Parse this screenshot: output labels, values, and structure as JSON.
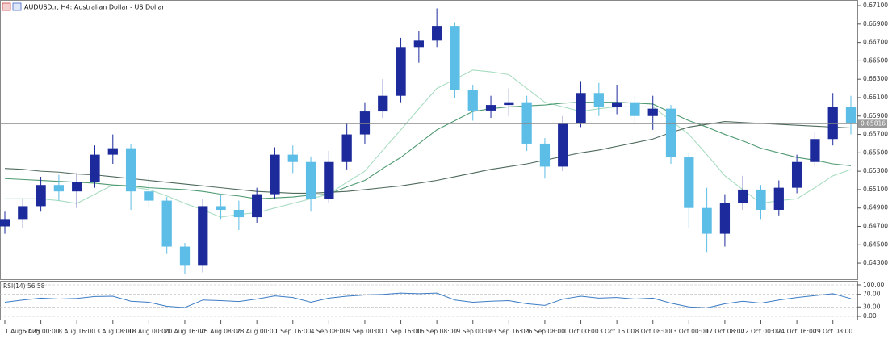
{
  "chart_data": [
    {
      "type": "candlestick",
      "title": "AUDUSD.r, H4:  Australian Dollar - US Dollar",
      "categories": [
        "1 Aug 2025",
        null,
        "6 Aug 00:00",
        null,
        "8 Aug 16:00",
        null,
        "13 Aug 08:00",
        null,
        "18 Aug 00:00",
        null,
        "20 Aug 16:00",
        null,
        "25 Aug 08:00",
        null,
        "28 Aug 00:00",
        null,
        "1 Sep 16:00",
        null,
        "4 Sep 08:00",
        null,
        "9 Sep 00:00",
        null,
        "11 Sep 16:00",
        null,
        "16 Sep 08:00",
        null,
        "19 Sep 00:00",
        null,
        "23 Sep 16:00",
        null,
        "26 Sep 08:00",
        null,
        "1 Oct 00:00",
        null,
        "3 Oct 16:00",
        null,
        "8 Oct 08:00",
        null,
        "13 Oct 00:00",
        null,
        "17 Oct 08:00",
        null,
        "22 Oct 00:00",
        null,
        "24 Oct 16:00",
        null,
        "29 Oct 08:00",
        null
      ],
      "open": [
        0.647,
        0.6478,
        0.6492,
        0.6515,
        0.6508,
        0.6518,
        0.6548,
        0.6555,
        0.6508,
        0.6498,
        0.6448,
        0.6428,
        0.6492,
        0.6488,
        0.648,
        0.6505,
        0.6548,
        0.654,
        0.65,
        0.654,
        0.657,
        0.6595,
        0.6612,
        0.6665,
        0.6672,
        0.6688,
        0.6618,
        0.6596,
        0.6602,
        0.6605,
        0.656,
        0.6535,
        0.6582,
        0.6615,
        0.66,
        0.6605,
        0.659,
        0.6598,
        0.6545,
        0.649,
        0.6462,
        0.6495,
        0.651,
        0.6488,
        0.6512,
        0.654,
        0.6565,
        0.66
      ],
      "high": [
        0.6486,
        0.65,
        0.6524,
        0.6526,
        0.6528,
        0.6558,
        0.657,
        0.656,
        0.6525,
        0.6502,
        0.6452,
        0.65,
        0.6505,
        0.6498,
        0.6512,
        0.6556,
        0.6558,
        0.6546,
        0.6552,
        0.6582,
        0.6605,
        0.663,
        0.6675,
        0.6682,
        0.6707,
        0.6692,
        0.6624,
        0.6612,
        0.662,
        0.6612,
        0.6566,
        0.659,
        0.6628,
        0.6626,
        0.6624,
        0.6612,
        0.6612,
        0.6602,
        0.655,
        0.6512,
        0.6505,
        0.6525,
        0.6515,
        0.652,
        0.6548,
        0.6572,
        0.6615,
        0.6612
      ],
      "low": [
        0.6462,
        0.6468,
        0.6486,
        0.6498,
        0.649,
        0.6512,
        0.6538,
        0.6488,
        0.649,
        0.644,
        0.6418,
        0.642,
        0.6478,
        0.6466,
        0.6474,
        0.65,
        0.6528,
        0.6486,
        0.6496,
        0.6532,
        0.656,
        0.6588,
        0.6605,
        0.6648,
        0.6665,
        0.661,
        0.6585,
        0.6588,
        0.659,
        0.6552,
        0.6522,
        0.653,
        0.6578,
        0.659,
        0.6592,
        0.658,
        0.6575,
        0.6538,
        0.6468,
        0.6442,
        0.6448,
        0.6488,
        0.6478,
        0.6482,
        0.6506,
        0.6535,
        0.6558,
        0.657
      ],
      "close": [
        0.6478,
        0.6492,
        0.6515,
        0.6508,
        0.6518,
        0.6548,
        0.6555,
        0.6508,
        0.6498,
        0.6448,
        0.6428,
        0.6492,
        0.6488,
        0.648,
        0.6505,
        0.6548,
        0.654,
        0.65,
        0.654,
        0.657,
        0.6595,
        0.6612,
        0.6665,
        0.6672,
        0.6688,
        0.6618,
        0.6596,
        0.6602,
        0.6605,
        0.656,
        0.6535,
        0.6582,
        0.6615,
        0.66,
        0.6605,
        0.659,
        0.6598,
        0.6545,
        0.649,
        0.6462,
        0.6495,
        0.651,
        0.6488,
        0.6512,
        0.654,
        0.6565,
        0.66,
        0.6582
      ],
      "up_color": "#1c2a9c",
      "down_color": "#5cbde6",
      "lines": [
        {
          "color": "#a8dcc0",
          "values": [
            0.65,
            0.65,
            0.65,
            0.6498,
            0.6495,
            0.6505,
            0.6515,
            0.6513,
            0.651,
            0.6503,
            0.6495,
            0.6488,
            0.648,
            0.6483,
            0.6485,
            0.649,
            0.6495,
            0.65,
            0.6505,
            0.6518,
            0.653,
            0.6553,
            0.6575,
            0.6598,
            0.662,
            0.663,
            0.664,
            0.6638,
            0.6635,
            0.662,
            0.6605,
            0.66,
            0.6595,
            0.6598,
            0.66,
            0.66,
            0.66,
            0.6585,
            0.657,
            0.6548,
            0.6525,
            0.651,
            0.6495,
            0.6498,
            0.65,
            0.6512,
            0.6525,
            0.6532
          ]
        },
        {
          "color": "#4e9a72",
          "values": [
            0.6522,
            0.6521,
            0.652,
            0.6519,
            0.6518,
            0.6517,
            0.6515,
            0.6514,
            0.6512,
            0.6511,
            0.651,
            0.6508,
            0.6505,
            0.6503,
            0.65,
            0.6501,
            0.6502,
            0.6504,
            0.6505,
            0.6513,
            0.652,
            0.6533,
            0.6545,
            0.656,
            0.6575,
            0.6585,
            0.6595,
            0.6598,
            0.66,
            0.6601,
            0.6602,
            0.6604,
            0.6605,
            0.6605,
            0.6605,
            0.6604,
            0.6603,
            0.6594,
            0.6585,
            0.6578,
            0.657,
            0.6563,
            0.6555,
            0.655,
            0.6545,
            0.6542,
            0.6538,
            0.6536
          ]
        },
        {
          "color": "#4f6b5c",
          "values": [
            0.6533,
            0.6532,
            0.653,
            0.6529,
            0.6527,
            0.6526,
            0.6524,
            0.6522,
            0.652,
            0.6518,
            0.6516,
            0.6514,
            0.6512,
            0.651,
            0.6508,
            0.6507,
            0.6506,
            0.6506,
            0.6507,
            0.6508,
            0.651,
            0.6512,
            0.6514,
            0.6517,
            0.652,
            0.6524,
            0.6528,
            0.6532,
            0.6535,
            0.6538,
            0.6542,
            0.6546,
            0.655,
            0.6553,
            0.6557,
            0.6561,
            0.6565,
            0.6572,
            0.6578,
            0.6581,
            0.6584,
            0.6583,
            0.6582,
            0.6581,
            0.658,
            0.6579,
            0.6578,
            0.6577
          ]
        }
      ],
      "price_line": {
        "value": 0.65816,
        "label": "0.65816"
      },
      "ylim": [
        0.64125,
        0.67153
      ],
      "yticks": [
        {
          "value": 0.643,
          "label": "0.64300"
        },
        {
          "value": 0.645,
          "label": "0.64500"
        },
        {
          "value": 0.647,
          "label": "0.64700"
        },
        {
          "value": 0.649,
          "label": "0.64900"
        },
        {
          "value": 0.651,
          "label": "0.65100"
        },
        {
          "value": 0.653,
          "label": "0.65300"
        },
        {
          "value": 0.655,
          "label": "0.65500"
        },
        {
          "value": 0.657,
          "label": "0.65700"
        },
        {
          "value": 0.659,
          "label": "0.65900"
        },
        {
          "value": 0.661,
          "label": "0.66100"
        },
        {
          "value": 0.663,
          "label": "0.66300"
        },
        {
          "value": 0.665,
          "label": "0.66500"
        },
        {
          "value": 0.667,
          "label": "0.66700"
        },
        {
          "value": 0.669,
          "label": "0.66900"
        },
        {
          "value": 0.671,
          "label": "0.67100"
        }
      ]
    },
    {
      "type": "line",
      "title": "RSI(14) 56.58",
      "values": [
        45,
        52,
        58,
        55,
        57,
        63,
        64,
        48,
        45,
        32,
        28,
        52,
        50,
        47,
        55,
        65,
        60,
        45,
        58,
        64,
        68,
        70,
        74,
        72,
        74,
        52,
        45,
        48,
        50,
        40,
        35,
        55,
        64,
        58,
        60,
        55,
        58,
        42,
        30,
        27,
        40,
        48,
        42,
        52,
        60,
        66,
        72,
        56.58
      ],
      "color": "#3c7cc4",
      "ylim": [
        0,
        100
      ],
      "yticks": [
        {
          "value": 100,
          "label": "100.00"
        },
        {
          "value": 70,
          "label": "70.00"
        },
        {
          "value": 30,
          "label": "30.00"
        },
        {
          "value": 0,
          "label": "0.00"
        }
      ],
      "grid": "dashed"
    }
  ]
}
